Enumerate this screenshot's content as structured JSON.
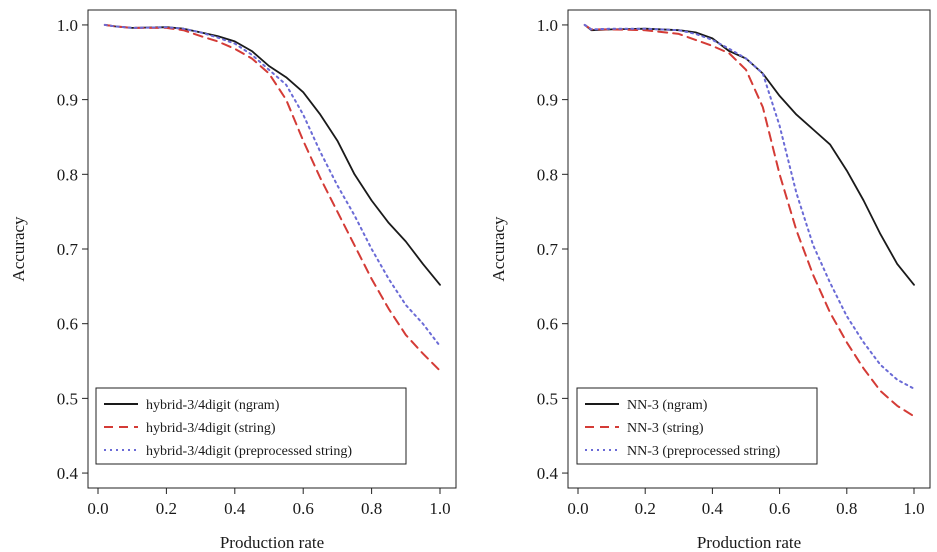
{
  "chart_data": [
    {
      "type": "line",
      "xlabel": "Production rate",
      "ylabel": "Accuracy",
      "xlim": [
        0.0,
        1.0
      ],
      "ylim": [
        0.38,
        1.02
      ],
      "x_ticks": [
        "0.0",
        "0.2",
        "0.4",
        "0.6",
        "0.8",
        "1.0"
      ],
      "y_ticks": [
        "0.4",
        "0.5",
        "0.6",
        "0.7",
        "0.8",
        "0.9",
        "1.0"
      ],
      "grid": false,
      "legend_position": "bottom-left",
      "series": [
        {
          "name": "hybrid-3/4digit (ngram)",
          "color": "#1a1a1a",
          "style": "solid",
          "x": [
            0.02,
            0.05,
            0.1,
            0.2,
            0.25,
            0.3,
            0.35,
            0.4,
            0.45,
            0.5,
            0.55,
            0.6,
            0.65,
            0.7,
            0.75,
            0.8,
            0.85,
            0.9,
            0.95,
            1.0
          ],
          "y": [
            1.0,
            0.998,
            0.996,
            0.997,
            0.995,
            0.99,
            0.985,
            0.978,
            0.965,
            0.945,
            0.93,
            0.91,
            0.88,
            0.845,
            0.8,
            0.765,
            0.735,
            0.71,
            0.68,
            0.652
          ]
        },
        {
          "name": "hybrid-3/4digit (string)",
          "color": "#d43b36",
          "style": "dashed",
          "x": [
            0.02,
            0.05,
            0.1,
            0.2,
            0.25,
            0.3,
            0.35,
            0.4,
            0.45,
            0.5,
            0.55,
            0.6,
            0.65,
            0.7,
            0.75,
            0.8,
            0.85,
            0.9,
            0.95,
            1.0
          ],
          "y": [
            1.0,
            0.998,
            0.996,
            0.996,
            0.993,
            0.985,
            0.978,
            0.968,
            0.955,
            0.935,
            0.9,
            0.845,
            0.795,
            0.75,
            0.705,
            0.66,
            0.62,
            0.585,
            0.56,
            0.537
          ]
        },
        {
          "name": "hybrid-3/4digit (preprocessed string)",
          "color": "#6b6bd6",
          "style": "dotted",
          "x": [
            0.02,
            0.05,
            0.1,
            0.2,
            0.25,
            0.3,
            0.35,
            0.4,
            0.45,
            0.5,
            0.55,
            0.6,
            0.65,
            0.7,
            0.75,
            0.8,
            0.85,
            0.9,
            0.95,
            1.0
          ],
          "y": [
            1.0,
            0.998,
            0.996,
            0.997,
            0.995,
            0.99,
            0.983,
            0.975,
            0.96,
            0.94,
            0.92,
            0.88,
            0.83,
            0.785,
            0.745,
            0.7,
            0.66,
            0.625,
            0.6,
            0.57
          ]
        }
      ]
    },
    {
      "type": "line",
      "xlabel": "Production rate",
      "ylabel": "Accuracy",
      "xlim": [
        0.0,
        1.0
      ],
      "ylim": [
        0.38,
        1.02
      ],
      "x_ticks": [
        "0.0",
        "0.2",
        "0.4",
        "0.6",
        "0.8",
        "1.0"
      ],
      "y_ticks": [
        "0.4",
        "0.5",
        "0.6",
        "0.7",
        "0.8",
        "0.9",
        "1.0"
      ],
      "grid": false,
      "legend_position": "bottom-left",
      "series": [
        {
          "name": "NN-3 (ngram)",
          "color": "#1a1a1a",
          "style": "solid",
          "x": [
            0.02,
            0.04,
            0.1,
            0.2,
            0.3,
            0.35,
            0.4,
            0.45,
            0.5,
            0.55,
            0.6,
            0.65,
            0.7,
            0.75,
            0.8,
            0.85,
            0.9,
            0.95,
            1.0
          ],
          "y": [
            1.0,
            0.993,
            0.994,
            0.995,
            0.993,
            0.99,
            0.982,
            0.965,
            0.955,
            0.935,
            0.905,
            0.88,
            0.86,
            0.84,
            0.805,
            0.765,
            0.72,
            0.68,
            0.652
          ]
        },
        {
          "name": "NN-3 (string)",
          "color": "#d43b36",
          "style": "dashed",
          "x": [
            0.02,
            0.04,
            0.1,
            0.2,
            0.3,
            0.35,
            0.4,
            0.45,
            0.5,
            0.55,
            0.6,
            0.65,
            0.7,
            0.75,
            0.8,
            0.85,
            0.9,
            0.95,
            1.0
          ],
          "y": [
            1.0,
            0.994,
            0.994,
            0.993,
            0.988,
            0.98,
            0.972,
            0.962,
            0.94,
            0.89,
            0.8,
            0.725,
            0.665,
            0.615,
            0.575,
            0.54,
            0.51,
            0.49,
            0.476
          ]
        },
        {
          "name": "NN-3 (preprocessed string)",
          "color": "#6b6bd6",
          "style": "dotted",
          "x": [
            0.02,
            0.04,
            0.1,
            0.2,
            0.3,
            0.35,
            0.4,
            0.45,
            0.5,
            0.55,
            0.6,
            0.65,
            0.7,
            0.75,
            0.8,
            0.85,
            0.9,
            0.95,
            1.0
          ],
          "y": [
            1.0,
            0.994,
            0.995,
            0.995,
            0.993,
            0.988,
            0.98,
            0.968,
            0.955,
            0.935,
            0.865,
            0.775,
            0.705,
            0.655,
            0.61,
            0.575,
            0.545,
            0.525,
            0.513
          ]
        }
      ]
    }
  ]
}
